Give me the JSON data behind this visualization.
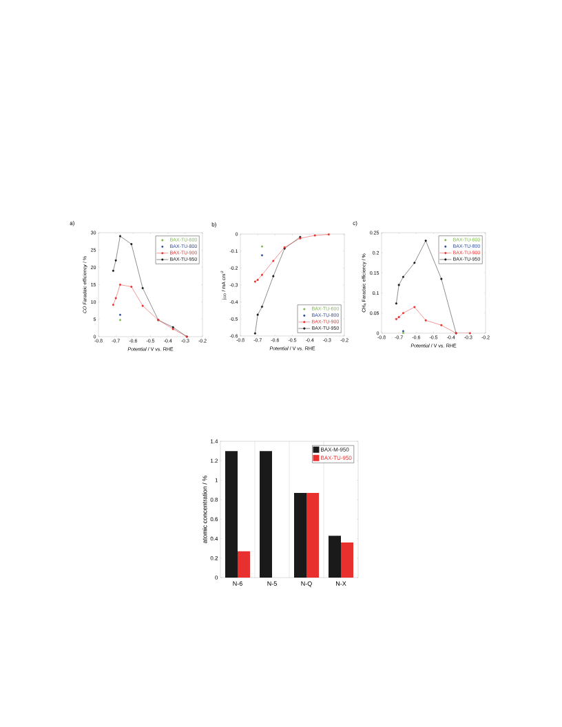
{
  "chart_data": [
    {
      "type": "line",
      "title": "a)",
      "xlabel": "*Potential* / V vs. RHE",
      "ylabel": "*CO Faradaic efficiency* / %",
      "xlim": [
        -0.8,
        -0.2
      ],
      "xticks": [
        -0.8,
        -0.7,
        -0.6,
        -0.5,
        -0.4,
        -0.3,
        -0.2
      ],
      "ylim": [
        0,
        30
      ],
      "yticks": [
        0,
        5,
        10,
        15,
        20,
        25,
        30
      ],
      "legend": "top right",
      "marker": "circle",
      "line_style": "solid",
      "series": [
        {
          "name": "BAX-TU-600",
          "color": "#7ab648",
          "type": "scatter",
          "x": [
            -0.675
          ],
          "values": [
            4.8
          ]
        },
        {
          "name": "BAX-TU-800",
          "color": "#2e4b9b",
          "type": "scatter",
          "x": [
            -0.675
          ],
          "values": [
            6.3
          ]
        },
        {
          "name": "BAX-TU-900",
          "color": "#e8312f",
          "x": [
            -0.715,
            -0.7,
            -0.675,
            -0.61,
            -0.545,
            -0.455,
            -0.37,
            -0.29
          ],
          "values": [
            9.2,
            11.1,
            15,
            14.4,
            8.9,
            4.8,
            2.2,
            0
          ]
        },
        {
          "name": "BAX-TU-950",
          "color": "#1a1a1a",
          "x": [
            -0.715,
            -0.7,
            -0.675,
            -0.61,
            -0.545,
            -0.455,
            -0.37,
            -0.29
          ],
          "values": [
            19,
            22,
            29,
            26.7,
            14,
            4.8,
            2.7,
            0
          ]
        }
      ]
    },
    {
      "type": "line",
      "title": "b)",
      "xlabel": "*Potential* / V vs. RHE",
      "ylabel": "j$_{CO}$ / mA cm$^{-2}$",
      "xlim": [
        -0.8,
        -0.2
      ],
      "xticks": [
        -0.8,
        -0.7,
        -0.6,
        -0.5,
        -0.4,
        -0.3,
        -0.2
      ],
      "ylim": [
        -0.6,
        0
      ],
      "yticks": [
        -0.6,
        -0.5,
        -0.4,
        -0.3,
        -0.2,
        -0.1,
        0
      ],
      "legend": "bottom right",
      "marker": "circle",
      "line_style": "solid",
      "series": [
        {
          "name": "BAX-TU-600",
          "color": "#7ab648",
          "type": "scatter",
          "x": [
            -0.675
          ],
          "values": [
            -0.073
          ]
        },
        {
          "name": "BAX-TU-800",
          "color": "#2e4b9b",
          "type": "scatter",
          "x": [
            -0.675
          ],
          "values": [
            -0.125
          ]
        },
        {
          "name": "BAX-TU-900",
          "color": "#e8312f",
          "x": [
            -0.715,
            -0.7,
            -0.675,
            -0.61,
            -0.545,
            -0.455,
            -0.37,
            -0.29
          ],
          "values": [
            -0.28,
            -0.27,
            -0.24,
            -0.158,
            -0.078,
            -0.025,
            -0.008,
            -0.002
          ]
        },
        {
          "name": "BAX-TU-950",
          "color": "#1a1a1a",
          "x": [
            -0.715,
            -0.7,
            -0.675,
            -0.61,
            -0.545,
            -0.455
          ],
          "values": [
            -0.585,
            -0.475,
            -0.428,
            -0.248,
            -0.085,
            -0.017
          ]
        }
      ]
    },
    {
      "type": "line",
      "title": "c)",
      "xlabel": "*Potential* / V vs. RHE",
      "ylabel": "CH$_{4}$ Faradaic efficiency / %",
      "xlim": [
        -0.8,
        -0.2
      ],
      "xticks": [
        -0.8,
        -0.7,
        -0.6,
        -0.5,
        -0.4,
        -0.3,
        -0.2
      ],
      "ylim": [
        0,
        0.25
      ],
      "yticks": [
        0,
        0.05,
        0.1,
        0.15,
        0.2,
        0.25
      ],
      "legend": "top right",
      "marker": "circle",
      "line_style": "solid",
      "series": [
        {
          "name": "BAX-TU-600",
          "color": "#7ab648",
          "type": "scatter",
          "x": [
            -0.675
          ],
          "values": [
            0.001
          ]
        },
        {
          "name": "BAX-TU-800",
          "color": "#2e4b9b",
          "type": "scatter",
          "x": [
            -0.675
          ],
          "values": [
            0.005
          ]
        },
        {
          "name": "BAX-TU-900",
          "color": "#e8312f",
          "x": [
            -0.715,
            -0.7,
            -0.675,
            -0.61,
            -0.545,
            -0.455,
            -0.37,
            -0.29
          ],
          "values": [
            0.035,
            0.04,
            0.05,
            0.065,
            0.032,
            0.02,
            0,
            0
          ]
        },
        {
          "name": "BAX-TU-950",
          "color": "#1a1a1a",
          "x": [
            -0.715,
            -0.7,
            -0.675,
            -0.61,
            -0.545,
            -0.455,
            -0.37
          ],
          "values": [
            0.074,
            0.12,
            0.14,
            0.175,
            0.23,
            0.135,
            0
          ]
        }
      ]
    },
    {
      "type": "bar",
      "ylabel": "atomic concentration / %",
      "categories": [
        "N-6",
        "N-5",
        "N-Q",
        "N-X"
      ],
      "ylim": [
        0,
        1.4
      ],
      "yticks": [
        0,
        0.2,
        0.4,
        0.6,
        0.8,
        1,
        1.2,
        1.4
      ],
      "legend": "top right",
      "grid": "x",
      "series": [
        {
          "name": "BAX-M-950",
          "color": "#1a1a1a",
          "values": [
            1.3,
            1.3,
            0.87,
            0.43
          ]
        },
        {
          "name": "BAX-TU-950",
          "color": "#e8312f",
          "values": [
            0.27,
            0,
            0.87,
            0.36
          ]
        }
      ]
    }
  ]
}
